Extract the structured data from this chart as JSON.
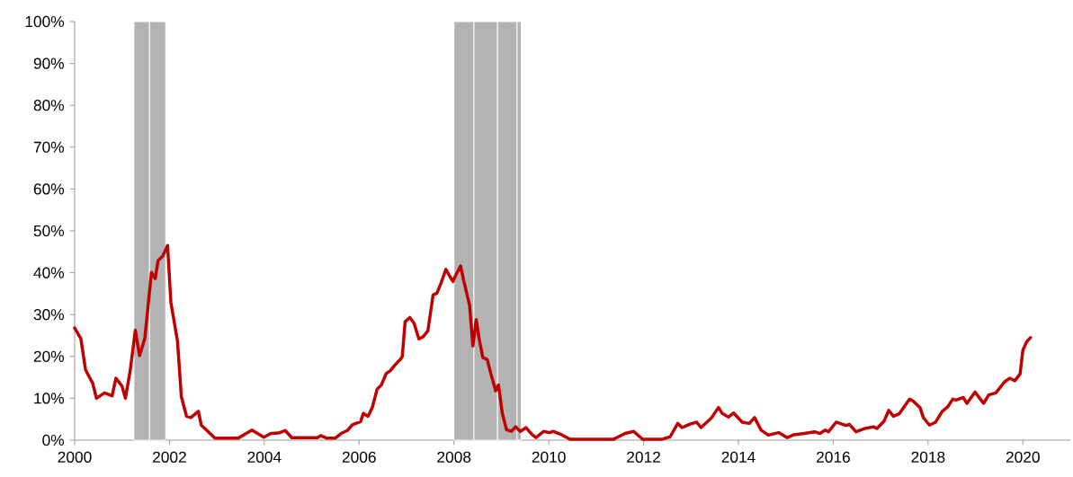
{
  "chart_data": {
    "type": "line",
    "xlim": [
      2000,
      2021
    ],
    "ylim": [
      0,
      100
    ],
    "xticks": [
      2000,
      2002,
      2004,
      2006,
      2008,
      2010,
      2012,
      2014,
      2016,
      2018,
      2020
    ],
    "yticks": [
      {
        "value": 0,
        "label": "0%"
      },
      {
        "value": 10,
        "label": "10%"
      },
      {
        "value": 20,
        "label": "20%"
      },
      {
        "value": 30,
        "label": "30%"
      },
      {
        "value": 40,
        "label": "40%"
      },
      {
        "value": 50,
        "label": "50%"
      },
      {
        "value": 60,
        "label": "60%"
      },
      {
        "value": 70,
        "label": "70%"
      },
      {
        "value": 80,
        "label": "80%"
      },
      {
        "value": 90,
        "label": "90%"
      },
      {
        "value": 100,
        "label": "100%"
      }
    ],
    "bands": [
      {
        "axis": "x",
        "from": 2001.25,
        "to": 2001.58,
        "color": "#b3b3b3"
      },
      {
        "axis": "x",
        "from": 2001.58,
        "to": 2001.92,
        "color": "#b3b3b3"
      },
      {
        "axis": "x",
        "from": 2008.0,
        "to": 2008.42,
        "color": "#b3b3b3"
      },
      {
        "axis": "x",
        "from": 2008.42,
        "to": 2008.92,
        "color": "#b3b3b3"
      },
      {
        "axis": "x",
        "from": 2008.92,
        "to": 2009.33,
        "color": "#b3b3b3"
      },
      {
        "axis": "x",
        "from": 2009.33,
        "to": 2009.42,
        "color": "#b3b3b3"
      }
    ],
    "series": [
      {
        "color": "#c00000",
        "x": [
          2000.0,
          2000.13,
          2000.23,
          2000.38,
          2000.46,
          2000.63,
          2000.79,
          2000.87,
          2001.0,
          2001.07,
          2001.17,
          2001.28,
          2001.37,
          2001.48,
          2001.62,
          2001.7,
          2001.76,
          2001.86,
          2001.96,
          2002.03,
          2002.17,
          2002.25,
          2002.36,
          2002.45,
          2002.61,
          2002.67,
          2002.96,
          2003.45,
          2003.74,
          2003.99,
          2004.14,
          2004.3,
          2004.44,
          2004.58,
          2005.12,
          2005.19,
          2005.31,
          2005.5,
          2005.62,
          2005.75,
          2005.86,
          2006.03,
          2006.09,
          2006.19,
          2006.28,
          2006.38,
          2006.47,
          2006.57,
          2006.66,
          2006.75,
          2006.87,
          2006.91,
          2006.97,
          2007.07,
          2007.16,
          2007.26,
          2007.35,
          2007.45,
          2007.56,
          2007.64,
          2007.73,
          2007.83,
          2007.92,
          2007.98,
          2008.05,
          2008.14,
          2008.21,
          2008.33,
          2008.4,
          2008.47,
          2008.53,
          2008.61,
          2008.7,
          2008.8,
          2008.88,
          2008.94,
          2009.02,
          2009.11,
          2009.21,
          2009.3,
          2009.4,
          2009.52,
          2009.64,
          2009.73,
          2009.89,
          2010.02,
          2010.09,
          2010.27,
          2010.45,
          2011.36,
          2011.47,
          2011.61,
          2011.79,
          2011.98,
          2012.38,
          2012.56,
          2012.72,
          2012.81,
          2012.99,
          2013.12,
          2013.21,
          2013.43,
          2013.58,
          2013.65,
          2013.79,
          2013.9,
          2014.08,
          2014.23,
          2014.34,
          2014.48,
          2014.63,
          2014.85,
          2015.03,
          2015.17,
          2015.39,
          2015.61,
          2015.72,
          2015.83,
          2015.9,
          2016.06,
          2016.27,
          2016.34,
          2016.48,
          2016.67,
          2016.85,
          2016.92,
          2017.07,
          2017.17,
          2017.27,
          2017.39,
          2017.61,
          2017.68,
          2017.83,
          2017.9,
          2018.03,
          2018.16,
          2018.3,
          2018.41,
          2018.52,
          2018.59,
          2018.74,
          2018.82,
          2018.99,
          2019.17,
          2019.28,
          2019.43,
          2019.61,
          2019.72,
          2019.83,
          2019.94,
          2020.0,
          2020.08,
          2020.16
        ],
        "values": [
          26.8,
          24.3,
          16.8,
          13.6,
          10.0,
          11.3,
          10.6,
          14.8,
          12.9,
          10.0,
          16.5,
          26.3,
          20.2,
          24.3,
          40.1,
          38.6,
          42.9,
          44.0,
          46.5,
          32.9,
          23.6,
          10.4,
          5.7,
          5.4,
          6.9,
          3.6,
          0.5,
          0.5,
          2.4,
          0.7,
          1.6,
          1.7,
          2.3,
          0.6,
          0.6,
          1.1,
          0.5,
          0.5,
          1.6,
          2.3,
          3.7,
          4.4,
          6.4,
          5.7,
          7.9,
          12.2,
          13.2,
          15.9,
          16.6,
          17.9,
          19.3,
          20.0,
          28.3,
          29.3,
          27.9,
          24.2,
          24.7,
          26.1,
          34.7,
          35.1,
          37.6,
          40.8,
          39.0,
          37.9,
          39.7,
          41.6,
          37.9,
          32.2,
          22.5,
          28.8,
          24.3,
          19.7,
          19.3,
          15.0,
          11.8,
          13.2,
          6.4,
          2.5,
          2.1,
          3.2,
          2.1,
          3.0,
          1.4,
          0.6,
          2.1,
          1.8,
          2.1,
          1.3,
          0.2,
          0.2,
          0.8,
          1.6,
          2.1,
          0.2,
          0.2,
          0.8,
          4.0,
          3.0,
          3.9,
          4.3,
          3.0,
          5.3,
          7.8,
          6.5,
          5.5,
          6.5,
          4.3,
          4.0,
          5.4,
          2.4,
          1.2,
          1.8,
          0.6,
          1.3,
          1.6,
          2.0,
          1.6,
          2.4,
          2.0,
          4.3,
          3.5,
          3.8,
          2.0,
          2.8,
          3.2,
          2.8,
          4.5,
          7.1,
          5.7,
          6.3,
          9.8,
          9.4,
          7.8,
          5.4,
          3.6,
          4.3,
          6.9,
          7.9,
          9.8,
          9.6,
          10.2,
          8.8,
          11.5,
          8.8,
          10.8,
          11.3,
          13.9,
          14.8,
          14.2,
          15.8,
          21.5,
          23.5,
          24.5
        ]
      }
    ]
  }
}
